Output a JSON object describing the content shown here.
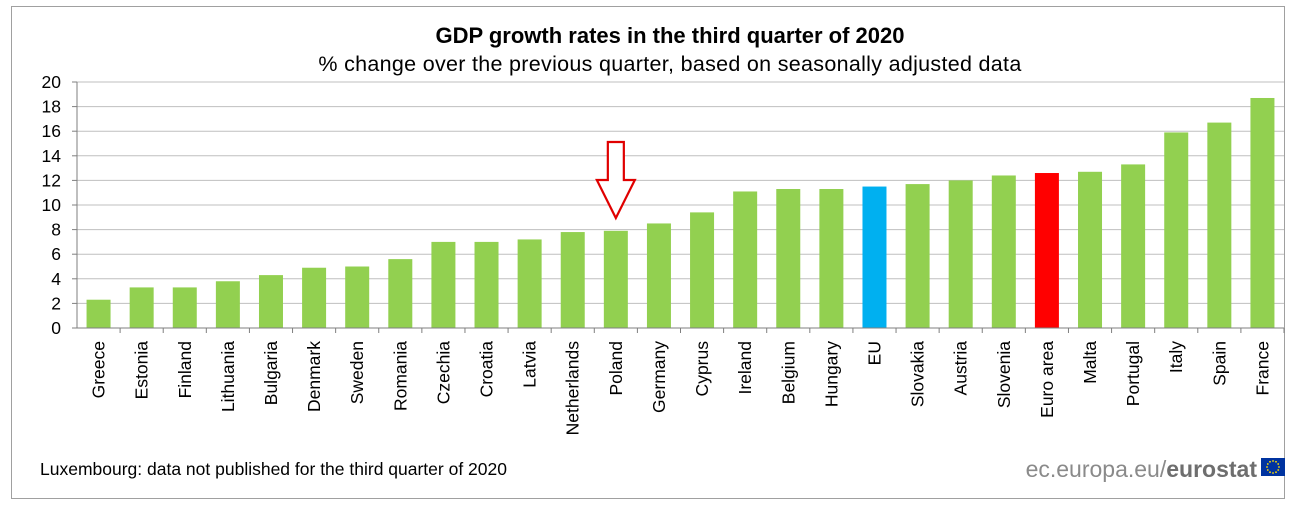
{
  "chart_data": {
    "type": "bar",
    "title": "GDP growth rates in the third quarter of 2020",
    "subtitle": "% change over the previous  quarter, based on seasonally adjusted data",
    "xlabel": "",
    "ylabel": "",
    "ylim": [
      0,
      20
    ],
    "yticks": [
      0,
      2,
      4,
      6,
      8,
      10,
      12,
      14,
      16,
      18,
      20
    ],
    "grid": true,
    "categories": [
      "Greece",
      "Estonia",
      "Finland",
      "Lithuania",
      "Bulgaria",
      "Denmark",
      "Sweden",
      "Romania",
      "Czechia",
      "Croatia",
      "Latvia",
      "Netherlands",
      "Poland",
      "Germany",
      "Cyprus",
      "Ireland",
      "Belgium",
      "Hungary",
      "EU",
      "Slovakia",
      "Austria",
      "Slovenia",
      "Euro area",
      "Malta",
      "Portugal",
      "Italy",
      "Spain",
      "France"
    ],
    "values": [
      2.3,
      3.3,
      3.3,
      3.8,
      4.3,
      4.9,
      5.0,
      5.6,
      7.0,
      7.0,
      7.2,
      7.8,
      7.9,
      8.5,
      9.4,
      11.1,
      11.3,
      11.3,
      11.5,
      11.7,
      12.0,
      12.4,
      12.6,
      12.7,
      13.3,
      15.9,
      16.7,
      18.7
    ],
    "colors": {
      "default": "#92d050",
      "EU": "#00b0f0",
      "Euro area": "#ff0000"
    },
    "highlight_arrow": {
      "category": "Poland",
      "color": "#e00000"
    },
    "footnote": "Luxembourg: data not published for the third quarter of 2020"
  },
  "source_logo": {
    "text_light": "ec.europa.eu/",
    "text_bold": "eurostat",
    "flag_icon": "eu-flag-icon",
    "flag_color": "#0033a0",
    "star_color": "#ffdd00"
  }
}
